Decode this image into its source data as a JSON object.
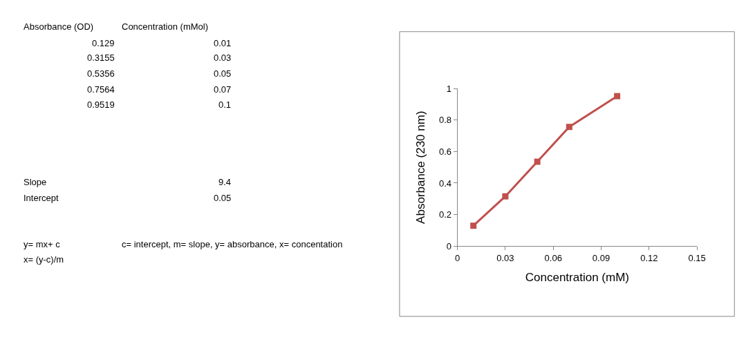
{
  "chart_data": {
    "type": "line",
    "xlabel": "Concentration (mM)",
    "ylabel": "Absorbance (230 nm)",
    "x": [
      0.01,
      0.03,
      0.05,
      0.07,
      0.1
    ],
    "series": [
      {
        "color": "#c0504d",
        "values": [
          0.129,
          0.3155,
          0.5356,
          0.7564,
          0.9519
        ]
      }
    ],
    "marker": "square",
    "line_style": "solid",
    "xlim": [
      0,
      0.15
    ],
    "xticks": [
      0,
      0.03,
      0.06,
      0.09,
      0.12,
      0.15
    ],
    "ylim": [
      0,
      1
    ],
    "yticks": [
      0,
      0.2,
      0.4,
      0.6,
      0.8,
      1
    ],
    "annotations": [
      "Absorbance (OD)",
      "Concentration (mMol)",
      "0.129",
      "0.01",
      "0.3155",
      "0.03",
      "0.5356",
      "0.05",
      "0.7564",
      "0.07",
      "0.9519",
      "0.1",
      "Slope",
      "9.4",
      "Intercept",
      "0.05",
      "y= mx+ c",
      "c= intercept, m= slope, y= absorbance, x= concentation",
      "x= (y-c)/m"
    ]
  }
}
